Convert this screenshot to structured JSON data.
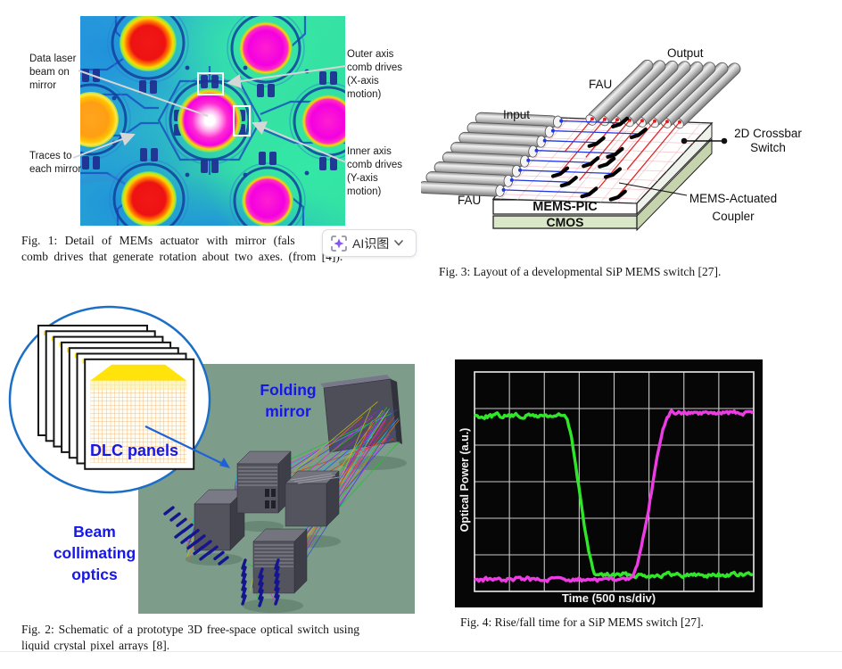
{
  "figure1": {
    "annotations": {
      "data_laser": "Data laser\nbeam on\nmirror",
      "traces": "Traces to\neach mirror",
      "outer_axis": "Outer axis\ncomb drives\n(X-axis\nmotion)",
      "inner_axis": "Inner axis\ncomb drives\n(Y-axis\nmotion)"
    },
    "caption_line1": "Fig. 1: Detail of MEMs actuator with mirror (fals",
    "caption_line2": "comb drives that generate rotation about two axes. (from [4]).",
    "ai_button_label": "AI识图",
    "ai_icon_color": "#7b42f0"
  },
  "figure3": {
    "labels": {
      "output": "Output",
      "fau_top": "FAU",
      "input": "Input",
      "fau_bottom": "FAU",
      "mems_pic": "MEMS-PIC",
      "cmos": "CMOS",
      "crossbar": "2D Crossbar\nSwitch",
      "coupler": "MEMS-Actuated\nCoupler"
    },
    "caption": "Fig. 3: Layout of a developmental SiP MEMS switch [27]."
  },
  "figure2": {
    "labels": {
      "dlc_panels": "DLC panels",
      "folding_mirror": "Folding\nmirror",
      "beam_collimating": "Beam\ncollimating\noptics"
    },
    "label_color": "#1717e8",
    "background_color": "#7d9c8a",
    "caption_line1": "Fig. 2: Schematic of a prototype 3D free-space optical switch using",
    "caption_line2": "liquid crystal pixel arrays [8]."
  },
  "figure4": {
    "ylabel": "Optical Power (a.u.)",
    "xlabel": "Time (500 ns/div)",
    "caption": "Fig. 4: Rise/fall time for a SiP MEMS switch [27]."
  },
  "chart_data": {
    "type": "line",
    "title": "Fig. 4: Rise/fall time for a SiP MEMS switch [27].",
    "xlabel": "Time (500 ns/div)",
    "ylabel": "Optical Power (a.u.)",
    "x_divisions": 8,
    "y_divisions": 6,
    "time_per_div": "500 ns",
    "background": "#000000",
    "grid": true,
    "series": [
      {
        "name": "switch output falling",
        "color": "#30e628",
        "shape": "step-down",
        "high_frac": 0.8,
        "low_frac": 0.075,
        "fall_start_div": 2.55,
        "fall_end_div": 3.5
      },
      {
        "name": "switch output rising",
        "color": "#ee3ce4",
        "shape": "step-up",
        "low_frac": 0.055,
        "high_frac": 0.815,
        "rise_start_div": 4.45,
        "rise_end_div": 5.65
      }
    ]
  }
}
